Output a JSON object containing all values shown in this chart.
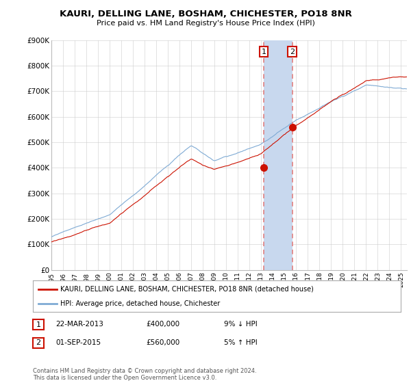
{
  "title": "KAURI, DELLING LANE, BOSHAM, CHICHESTER, PO18 8NR",
  "subtitle": "Price paid vs. HM Land Registry's House Price Index (HPI)",
  "ylabel_ticks": [
    "£0",
    "£100K",
    "£200K",
    "£300K",
    "£400K",
    "£500K",
    "£600K",
    "£700K",
    "£800K",
    "£900K"
  ],
  "ylim": [
    0,
    900000
  ],
  "xlim_start": 1995.0,
  "xlim_end": 2025.5,
  "sale1_date": 2013.22,
  "sale1_price": 400000,
  "sale1_label": "1",
  "sale2_date": 2015.67,
  "sale2_price": 560000,
  "sale2_label": "2",
  "hpi_color": "#7eaad4",
  "property_color": "#cc1100",
  "vline_color": "#e08080",
  "legend_property": "KAURI, DELLING LANE, BOSHAM, CHICHESTER, PO18 8NR (detached house)",
  "legend_hpi": "HPI: Average price, detached house, Chichester",
  "table_row1": [
    "1",
    "22-MAR-2013",
    "£400,000",
    "9% ↓ HPI"
  ],
  "table_row2": [
    "2",
    "01-SEP-2015",
    "£560,000",
    "5% ↑ HPI"
  ],
  "footer": "Contains HM Land Registry data © Crown copyright and database right 2024.\nThis data is licensed under the Open Government Licence v3.0.",
  "background_color": "#ffffff",
  "grid_color": "#cccccc",
  "span_color": "#c8d8ee"
}
